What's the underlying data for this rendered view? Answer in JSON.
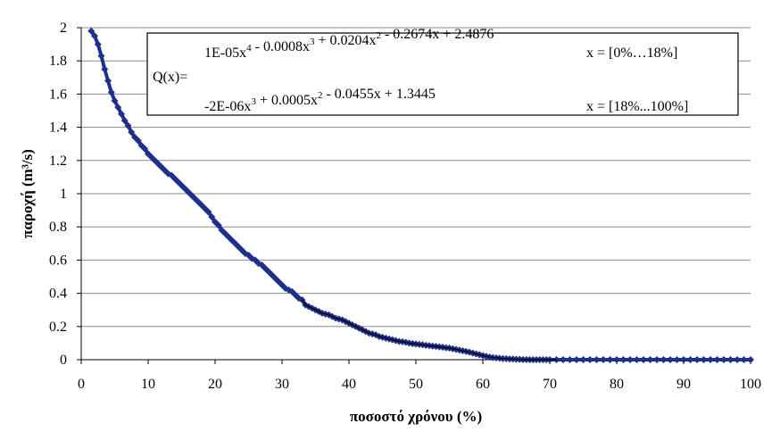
{
  "chart_data": {
    "type": "scatter",
    "title": "",
    "xlabel": "ποσοστό χρόνου (%)",
    "ylabel": "παροχή (m³/s)",
    "xlim": [
      0,
      100
    ],
    "ylim": [
      0,
      2
    ],
    "x_ticks": [
      "0",
      "10",
      "20",
      "30",
      "40",
      "50",
      "60",
      "70",
      "80",
      "90",
      "100"
    ],
    "y_ticks": [
      "0",
      "0.2",
      "0.4",
      "0.6",
      "0.8",
      "1",
      "1.2",
      "1.4",
      "1.6",
      "1.8",
      "2"
    ],
    "grid": "horizontal",
    "colors": {
      "series": "#1f2f8c",
      "fit": "#000000",
      "grid": "#8c8c8c"
    },
    "series": [
      {
        "marker": "diamond",
        "x": [
          1.5,
          2,
          2.5,
          3,
          3.5,
          4,
          4.5,
          5,
          5.5,
          6,
          6.5,
          7,
          7.5,
          8,
          8.5,
          9,
          9.5,
          10,
          10.5,
          11,
          11.5,
          12,
          12.5,
          13,
          13.5,
          14,
          14.5,
          15,
          15.5,
          16,
          16.5,
          17,
          17.5,
          18,
          18.5,
          19,
          19.5,
          20,
          20.5,
          21,
          21.5,
          22,
          22.5,
          23,
          23.5,
          24,
          24.5,
          25,
          25.5,
          26,
          26.5,
          27,
          27.5,
          28,
          28.5,
          29,
          29.5,
          30,
          30.5,
          31,
          31.5,
          32,
          32.5,
          33,
          33.5,
          34,
          34.5,
          35,
          35.5,
          36,
          36.5,
          37,
          37.5,
          38,
          38.5,
          39,
          39.5,
          40,
          40.5,
          41,
          41.5,
          42,
          42.5,
          43,
          43.5,
          44,
          44.5,
          45,
          45.5,
          46,
          46.5,
          47,
          47.5,
          48,
          48.5,
          49,
          49.5,
          50,
          50.5,
          51,
          51.5,
          52,
          52.5,
          53,
          53.5,
          54,
          54.5,
          55,
          55.5,
          56,
          56.5,
          57,
          57.5,
          58,
          58.5,
          59,
          59.5,
          60,
          60.5,
          61,
          61.5,
          62,
          62.5,
          63,
          63.5,
          64,
          64.5,
          65,
          65.5,
          66,
          66.5,
          67,
          67.5,
          68,
          68.5,
          69,
          69.5,
          70,
          71,
          72,
          73,
          74,
          75,
          76,
          77,
          78,
          79,
          80,
          81,
          82,
          83,
          84,
          85,
          86,
          87,
          88,
          89,
          90,
          91,
          92,
          93,
          94,
          95,
          96,
          97,
          98,
          99,
          100
        ],
        "y": [
          1.98,
          1.95,
          1.9,
          1.83,
          1.75,
          1.68,
          1.61,
          1.56,
          1.52,
          1.48,
          1.44,
          1.41,
          1.37,
          1.34,
          1.32,
          1.29,
          1.27,
          1.24,
          1.22,
          1.2,
          1.18,
          1.16,
          1.14,
          1.12,
          1.11,
          1.09,
          1.07,
          1.05,
          1.03,
          1.01,
          0.99,
          0.97,
          0.95,
          0.93,
          0.91,
          0.89,
          0.86,
          0.83,
          0.81,
          0.78,
          0.76,
          0.74,
          0.72,
          0.7,
          0.68,
          0.66,
          0.64,
          0.63,
          0.61,
          0.6,
          0.58,
          0.57,
          0.55,
          0.53,
          0.51,
          0.49,
          0.47,
          0.45,
          0.43,
          0.42,
          0.41,
          0.39,
          0.37,
          0.36,
          0.33,
          0.32,
          0.31,
          0.3,
          0.29,
          0.28,
          0.275,
          0.27,
          0.26,
          0.25,
          0.245,
          0.24,
          0.23,
          0.22,
          0.21,
          0.2,
          0.19,
          0.18,
          0.17,
          0.16,
          0.155,
          0.15,
          0.14,
          0.135,
          0.13,
          0.125,
          0.12,
          0.115,
          0.11,
          0.108,
          0.105,
          0.1,
          0.097,
          0.095,
          0.092,
          0.09,
          0.087,
          0.085,
          0.082,
          0.08,
          0.077,
          0.075,
          0.072,
          0.07,
          0.066,
          0.062,
          0.058,
          0.054,
          0.05,
          0.045,
          0.04,
          0.035,
          0.03,
          0.025,
          0.02,
          0.016,
          0.013,
          0.011,
          0.009,
          0.007,
          0.006,
          0.005,
          0.004,
          0.003,
          0.002,
          0.001,
          0.001,
          0,
          0,
          0,
          0,
          0,
          0,
          0,
          0,
          0,
          0,
          0,
          0,
          0,
          0,
          0,
          0,
          0,
          0,
          0,
          0,
          0,
          0,
          0,
          0,
          0,
          0,
          0,
          0,
          0,
          0,
          0,
          0,
          0,
          0,
          0,
          0,
          0
        ]
      }
    ],
    "annotation": {
      "label": "Q(x)=",
      "eq1_parts": [
        {
          "t": "1E-05x"
        },
        {
          "t": "4",
          "sup": true
        },
        {
          "t": " - 0.0008x"
        },
        {
          "t": "3",
          "sup": true
        },
        {
          "t": " + 0.0204x"
        },
        {
          "t": "2",
          "sup": true
        },
        {
          "t": " - 0.2674x + 2.4876"
        }
      ],
      "eq1_range": "x = [0%…18%]",
      "eq2_parts": [
        {
          "t": "-2E-06x"
        },
        {
          "t": "3",
          "sup": true
        },
        {
          "t": " + 0.0005x"
        },
        {
          "t": "2",
          "sup": true
        },
        {
          "t": " - 0.0455x + 1.3445"
        }
      ],
      "eq2_range": "x = [18%...100%]"
    }
  }
}
